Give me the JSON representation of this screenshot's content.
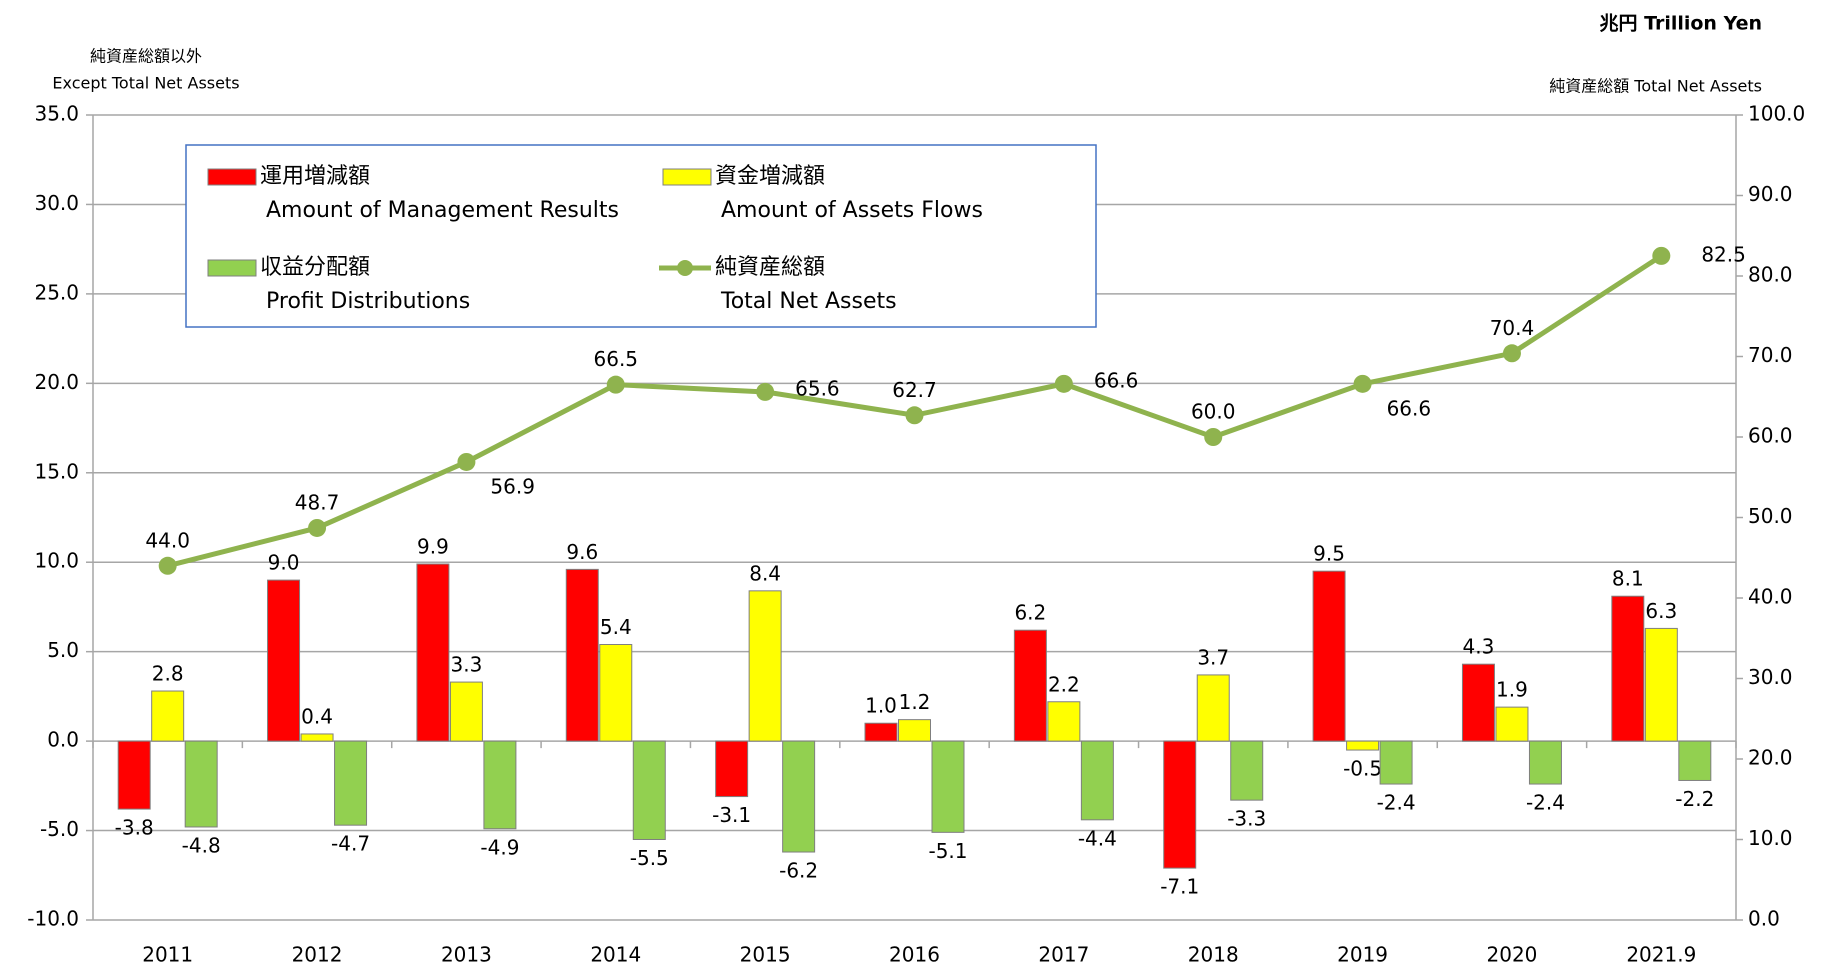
{
  "chart_data": {
    "type": "bar_line",
    "unit_label": "兆円 Trillion Yen",
    "y_label_ja": "純資産総額以外",
    "y_label": "Except Total Net Assets",
    "y2_label": "純資産総額 Total Net Assets",
    "categories": [
      "2011",
      "2012",
      "2013",
      "2014",
      "2015",
      "2016",
      "2017",
      "2018",
      "2019",
      "2020",
      "2021.9"
    ],
    "ylim": [
      -10,
      35
    ],
    "yticks": [
      {
        "value": -10,
        "label": "-10.0"
      },
      {
        "value": -5,
        "label": "-5.0"
      },
      {
        "value": 0,
        "label": "0.0"
      },
      {
        "value": 5,
        "label": "5.0"
      },
      {
        "value": 10,
        "label": "10.0"
      },
      {
        "value": 15,
        "label": "15.0"
      },
      {
        "value": 20,
        "label": "20.0"
      },
      {
        "value": 25,
        "label": "25.0"
      },
      {
        "value": 30,
        "label": "30.0"
      },
      {
        "value": 35,
        "label": "35.0"
      }
    ],
    "y2lim": [
      0,
      100
    ],
    "y2ticks": [
      {
        "value": 0,
        "label": "0.0"
      },
      {
        "value": 10,
        "label": "10.0"
      },
      {
        "value": 20,
        "label": "20.0"
      },
      {
        "value": 30,
        "label": "30.0"
      },
      {
        "value": 40,
        "label": "40.0"
      },
      {
        "value": 50,
        "label": "50.0"
      },
      {
        "value": 60,
        "label": "60.0"
      },
      {
        "value": 70,
        "label": "70.0"
      },
      {
        "value": 80,
        "label": "80.0"
      },
      {
        "value": 90,
        "label": "90.0"
      },
      {
        "value": 100,
        "label": "100.0"
      }
    ],
    "grid": true,
    "series": [
      {
        "name": "運用増減額",
        "name_en": "Amount of Management Results",
        "type": "bar",
        "color": "#ff0000",
        "values": [
          -3.8,
          9.0,
          9.9,
          9.6,
          -3.1,
          1.0,
          6.2,
          -7.1,
          9.5,
          4.3,
          8.1
        ],
        "value_labels": [
          "-3.8",
          "9.0",
          "9.9",
          "9.6",
          "-3.1",
          "1.0",
          "6.2",
          "-7.1",
          "9.5",
          "4.3",
          "8.1"
        ]
      },
      {
        "name": "資金増減額",
        "name_en": "Amount of Assets Flows",
        "type": "bar",
        "color": "#ffff00",
        "values": [
          2.8,
          0.4,
          3.3,
          5.4,
          8.4,
          1.2,
          2.2,
          3.7,
          -0.5,
          1.9,
          6.3
        ],
        "value_labels": [
          "2.8",
          "0.4",
          "3.3",
          "5.4",
          "8.4",
          "1.2",
          "2.2",
          "3.7",
          "-0.5",
          "1.9",
          "6.3"
        ]
      },
      {
        "name": "収益分配額",
        "name_en": "Profit Distributions",
        "type": "bar",
        "color": "#92d050",
        "values": [
          -4.8,
          -4.7,
          -4.9,
          -5.5,
          -6.2,
          -5.1,
          -4.4,
          -3.3,
          -2.4,
          -2.4,
          -2.2
        ],
        "value_labels": [
          "-4.8",
          "-4.7",
          "-4.9",
          "-5.5",
          "-6.2",
          "-5.1",
          "-4.4",
          "-3.3",
          "-2.4",
          "-2.4",
          "-2.2"
        ]
      },
      {
        "name": "純資産総額",
        "name_en": "Total Net Assets",
        "type": "line",
        "axis": "y2",
        "color": "#8fb34e",
        "values": [
          44.0,
          48.7,
          56.9,
          66.5,
          65.6,
          62.7,
          66.6,
          60.0,
          66.6,
          70.4,
          82.5
        ],
        "value_labels": [
          "44.0",
          "48.7",
          "56.9",
          "66.5",
          "65.6",
          "62.7",
          "66.6",
          "60.0",
          "66.6",
          "70.4",
          "82.5"
        ]
      }
    ]
  }
}
